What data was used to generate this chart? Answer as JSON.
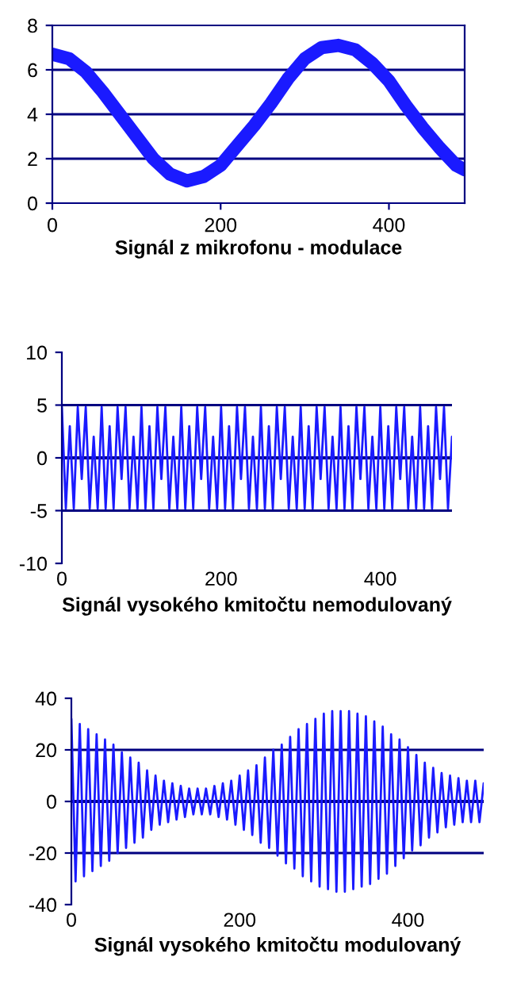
{
  "chart_data": [
    {
      "type": "line",
      "title": "Signál z mikrofonu - modulace",
      "x": [
        0,
        20,
        40,
        60,
        80,
        100,
        120,
        140,
        160,
        180,
        200,
        220,
        240,
        260,
        280,
        300,
        320,
        340,
        360,
        380,
        400,
        420,
        440,
        460,
        480,
        490
      ],
      "series": [
        {
          "color": "#1a1aff",
          "values": [
            6.7,
            6.5,
            5.9,
            5.0,
            4.0,
            3.0,
            2.0,
            1.3,
            1.0,
            1.2,
            1.7,
            2.6,
            3.5,
            4.5,
            5.6,
            6.5,
            7.0,
            7.1,
            6.9,
            6.3,
            5.5,
            4.4,
            3.4,
            2.5,
            1.7,
            1.5
          ]
        }
      ],
      "xlim": [
        0,
        490
      ],
      "xticks": [
        0,
        200,
        400
      ],
      "ylim": [
        0,
        8
      ],
      "yticks": [
        0,
        2,
        4,
        6,
        8
      ],
      "grid": "y"
    },
    {
      "type": "line",
      "title": "Signál vysokého kmitočtu nemodulovaný",
      "x": [
        0,
        5,
        10,
        15,
        20,
        25,
        30,
        35,
        40,
        45,
        50,
        55,
        60,
        65,
        70,
        75,
        80,
        85,
        90,
        95,
        100,
        105,
        110,
        115,
        120,
        125,
        130,
        135,
        140,
        145,
        150,
        155,
        160,
        165,
        170,
        175,
        180,
        185,
        190,
        195,
        200,
        205,
        210,
        215,
        220,
        225,
        230,
        235,
        240,
        245,
        250,
        255,
        260,
        265,
        270,
        275,
        280,
        285,
        290,
        295,
        300,
        305,
        310,
        315,
        320,
        325,
        330,
        335,
        340,
        345,
        350,
        355,
        360,
        365,
        370,
        375,
        380,
        385,
        390,
        395,
        400,
        405,
        410,
        415,
        420,
        425,
        430,
        435,
        440,
        445,
        450,
        455,
        460,
        465,
        470,
        475,
        480,
        485,
        490
      ],
      "series": [
        {
          "color": "#1a1aff",
          "values": [
            4.8,
            -4.8,
            3,
            -4.8,
            4.8,
            -2,
            4.8,
            -4.8,
            2,
            -4.8,
            4.8,
            -4.8,
            3,
            -4.8,
            4.8,
            -2,
            4.8,
            -4.8,
            2,
            -4.8,
            4.8,
            -4.8,
            3,
            -4.8,
            4.8,
            -2,
            4.8,
            -4.8,
            2,
            -4.8,
            4.8,
            -4.8,
            3,
            -4.8,
            4.8,
            -2,
            4.8,
            -4.8,
            2,
            -4.8,
            4.8,
            -4.8,
            3,
            -4.8,
            4.8,
            -2,
            4.8,
            -4.8,
            2,
            -4.8,
            4.8,
            -4.8,
            3,
            -4.8,
            4.8,
            -2,
            4.8,
            -4.8,
            2,
            -4.8,
            4.8,
            -4.8,
            3,
            -4.8,
            4.8,
            -2,
            4.8,
            -4.8,
            2,
            -4.8,
            4.8,
            -4.8,
            3,
            -4.8,
            4.8,
            -2,
            4.8,
            -4.8,
            2,
            -4.8,
            4.8,
            -4.8,
            3,
            -4.8,
            4.8,
            -2,
            4.8,
            -4.8,
            2,
            -4.8,
            4.8,
            -4.8,
            3,
            -4.8,
            4.8,
            -2,
            4.8,
            -4.8,
            2
          ]
        }
      ],
      "xlim": [
        0,
        490
      ],
      "xticks": [
        0,
        200,
        400
      ],
      "ylim": [
        -10,
        10
      ],
      "yticks": [
        -10,
        -5,
        0,
        5,
        10
      ],
      "grid": "y",
      "ref_lines": [
        {
          "axis": "y",
          "value": 0,
          "color": "#000080"
        }
      ]
    },
    {
      "type": "line",
      "title": "Signál vysokého kmitočtu modulovaný",
      "x": [
        0,
        5,
        10,
        15,
        20,
        25,
        30,
        35,
        40,
        45,
        50,
        55,
        60,
        65,
        70,
        75,
        80,
        85,
        90,
        95,
        100,
        105,
        110,
        115,
        120,
        125,
        130,
        135,
        140,
        145,
        150,
        155,
        160,
        165,
        170,
        175,
        180,
        185,
        190,
        195,
        200,
        205,
        210,
        215,
        220,
        225,
        230,
        235,
        240,
        245,
        250,
        255,
        260,
        265,
        270,
        275,
        280,
        285,
        290,
        295,
        300,
        305,
        310,
        315,
        320,
        325,
        330,
        335,
        340,
        345,
        350,
        355,
        360,
        365,
        370,
        375,
        380,
        385,
        390,
        395,
        400,
        405,
        410,
        415,
        420,
        425,
        430,
        435,
        440,
        445,
        450,
        455,
        460,
        465,
        470,
        475,
        480,
        485,
        490
      ],
      "series": [
        {
          "color": "#1a1aff",
          "values": [
            32,
            -31,
            30,
            -29,
            28,
            -27,
            26,
            -25,
            24,
            -23,
            22,
            -20,
            19,
            -18,
            17,
            -16,
            15,
            -14,
            12,
            -11,
            10,
            -9,
            8,
            -8,
            7,
            -7,
            6,
            -6,
            5,
            -5,
            5,
            -5,
            5,
            -5,
            6,
            -6,
            7,
            -7,
            8,
            -9,
            10,
            -11,
            12,
            -13,
            14,
            -16,
            17,
            -18,
            20,
            -21,
            22,
            -24,
            25,
            -26,
            28,
            -29,
            30,
            -31,
            32,
            -33,
            34,
            -34,
            35,
            -35,
            35,
            -35,
            35,
            -34,
            34,
            -33,
            33,
            -32,
            31,
            -30,
            29,
            -28,
            26,
            -25,
            24,
            -22,
            21,
            -19,
            18,
            -17,
            15,
            -14,
            13,
            -12,
            11,
            -10,
            10,
            -9,
            9,
            -8,
            8,
            -8,
            8,
            -8,
            7
          ]
        }
      ],
      "xlim": [
        0,
        490
      ],
      "xticks": [
        0,
        200,
        400
      ],
      "ylim": [
        -40,
        40
      ],
      "yticks": [
        -40,
        -20,
        0,
        20,
        40
      ],
      "grid": "y",
      "ref_lines": [
        {
          "axis": "y",
          "value": 0,
          "color": "#000080"
        }
      ]
    }
  ]
}
